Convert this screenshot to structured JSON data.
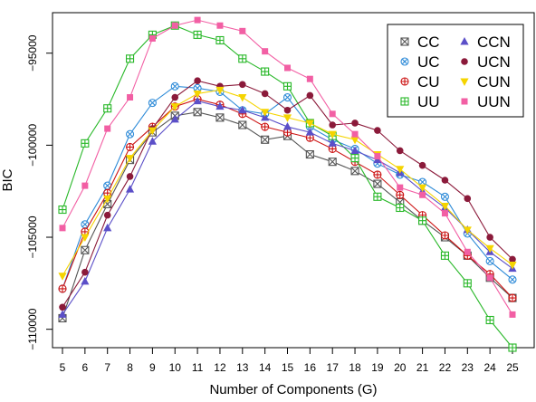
{
  "chart_data": {
    "type": "line",
    "xlabel": "Number of Components (G)",
    "ylabel": "BIC",
    "x": [
      5,
      6,
      7,
      8,
      9,
      10,
      11,
      12,
      13,
      14,
      15,
      16,
      17,
      18,
      19,
      20,
      21,
      22,
      23,
      24,
      25
    ],
    "xlim": [
      5,
      25
    ],
    "ylim": [
      -111000,
      -92800
    ],
    "yticks": [
      -110000,
      -105000,
      -100000,
      -95000
    ],
    "ytick_labels": [
      "−110000",
      "−105000",
      "−100000",
      "−95000"
    ],
    "grid": false,
    "legend_position": "top-right",
    "series": [
      {
        "name": "CC",
        "color": "#555555",
        "marker": "boxx",
        "values": [
          -109400,
          -105700,
          -103200,
          -100800,
          -99300,
          -98400,
          -98200,
          -98500,
          -98900,
          -99700,
          -99500,
          -100500,
          -100900,
          -101400,
          -102100,
          -103100,
          -104100,
          -105000,
          -106000,
          -107200,
          -108300
        ]
      },
      {
        "name": "UC",
        "color": "#2e8bd8",
        "marker": "circlex",
        "values": [
          -107800,
          -104300,
          -102200,
          -99400,
          -97700,
          -96800,
          -96900,
          -97100,
          -98100,
          -98300,
          -97400,
          -99000,
          -99700,
          -100200,
          -101000,
          -101600,
          -102000,
          -102800,
          -104800,
          -106300,
          -107300
        ]
      },
      {
        "name": "CU",
        "color": "#cc1111",
        "marker": "circleplus",
        "values": [
          -107800,
          -104700,
          -102600,
          -100100,
          -99000,
          -97900,
          -97500,
          -97800,
          -98300,
          -99000,
          -99300,
          -99600,
          -100200,
          -100900,
          -101600,
          -102700,
          -103800,
          -104900,
          -106000,
          -107000,
          -108300
        ]
      },
      {
        "name": "UU",
        "color": "#28b828",
        "marker": "boxplus",
        "values": [
          -103500,
          -99900,
          -98000,
          -95300,
          -94000,
          -93500,
          -94000,
          -94300,
          -95300,
          -96000,
          -96800,
          -98800,
          -99500,
          -100700,
          -102800,
          -103400,
          -104100,
          -106000,
          -107500,
          -109500,
          -111000
        ]
      },
      {
        "name": "CCN",
        "color": "#5b4fc8",
        "marker": "triangle",
        "values": [
          -109200,
          -107400,
          -104500,
          -102400,
          -99800,
          -98600,
          -97600,
          -97900,
          -98100,
          -98500,
          -99000,
          -99300,
          -99900,
          -100300,
          -100800,
          -101500,
          -102500,
          -103400,
          -104600,
          -105800,
          -106700
        ]
      },
      {
        "name": "UCN",
        "color": "#8b1a3a",
        "marker": "dot",
        "values": [
          -108800,
          -106900,
          -103800,
          -101700,
          -99100,
          -97400,
          -96500,
          -96800,
          -96700,
          -97200,
          -98100,
          -97300,
          -98900,
          -98800,
          -99200,
          -100300,
          -101100,
          -101900,
          -102900,
          -105000,
          -106200
        ]
      },
      {
        "name": "CUN",
        "color": "#f5d400",
        "marker": "triangledown",
        "values": [
          -107100,
          -105000,
          -102900,
          -100700,
          -99200,
          -97900,
          -97200,
          -97000,
          -97400,
          -98200,
          -98500,
          -98800,
          -99400,
          -99700,
          -100500,
          -101300,
          -102300,
          -103300,
          -104600,
          -105600,
          -106500
        ]
      },
      {
        "name": "UUN",
        "color": "#f25fa4",
        "marker": "square",
        "values": [
          -104500,
          -102200,
          -99100,
          -97400,
          -94200,
          -93500,
          -93200,
          -93500,
          -93800,
          -94900,
          -95800,
          -96400,
          -98300,
          -99400,
          -100600,
          -102300,
          -102700,
          -103700,
          -105800,
          -107200,
          -109200
        ]
      }
    ]
  }
}
